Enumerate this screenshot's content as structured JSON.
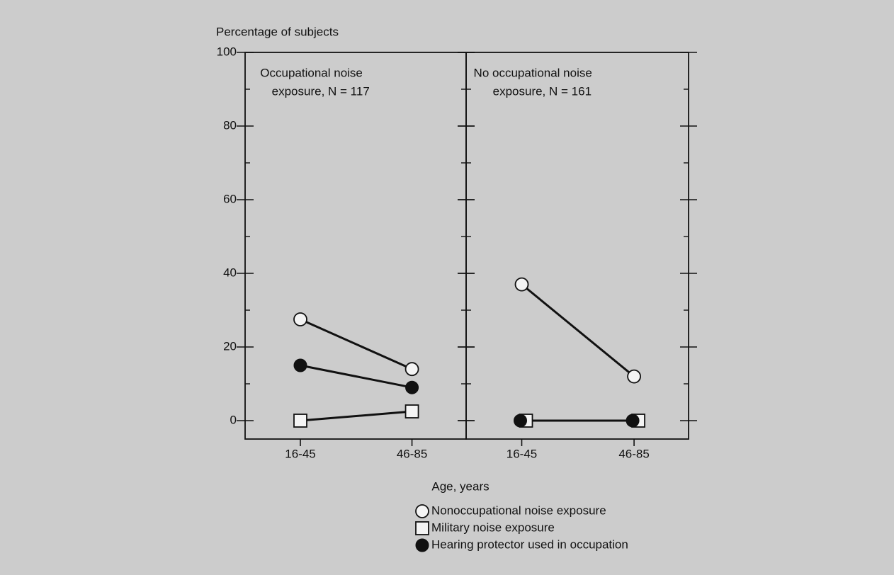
{
  "chart_data": [
    {
      "type": "line",
      "y_label": "Percentage of subjects",
      "x_label": "Age, years",
      "annotation": [
        "Occupational noise",
        "exposure, N = 117"
      ],
      "categories": [
        "16-45",
        "46-85"
      ],
      "series": [
        {
          "name": "Nonoccupational noise exposure",
          "marker": "open-circle",
          "color": "#111111",
          "values": [
            27.5,
            14
          ]
        },
        {
          "name": "Military noise exposure",
          "marker": "open-square",
          "color": "#111111",
          "values": [
            0,
            2.5
          ]
        },
        {
          "name": "Hearing protector used in occupation",
          "marker": "filled-circle",
          "color": "#111111",
          "values": [
            15,
            9
          ]
        }
      ],
      "ylim": [
        -5,
        100
      ],
      "yticks": [
        0,
        20,
        40,
        60,
        80,
        100
      ],
      "minor_yticks": [
        10,
        30,
        50,
        70,
        90
      ]
    },
    {
      "type": "line",
      "annotation": [
        "No occupational noise",
        "exposure, N = 161"
      ],
      "categories": [
        "16-45",
        "46-85"
      ],
      "series": [
        {
          "marker": "open-circle",
          "color": "#111111",
          "values": [
            37,
            12
          ]
        },
        {
          "marker": "open-square",
          "color": "#111111",
          "values": [
            0,
            0
          ]
        },
        {
          "marker": "filled-circle",
          "color": "#111111",
          "values": [
            0,
            0
          ]
        }
      ],
      "ylim": [
        -5,
        100
      ],
      "yticks": [
        0,
        20,
        40,
        60,
        80,
        100
      ],
      "minor_yticks": [
        10,
        30,
        50,
        70,
        90
      ]
    }
  ]
}
